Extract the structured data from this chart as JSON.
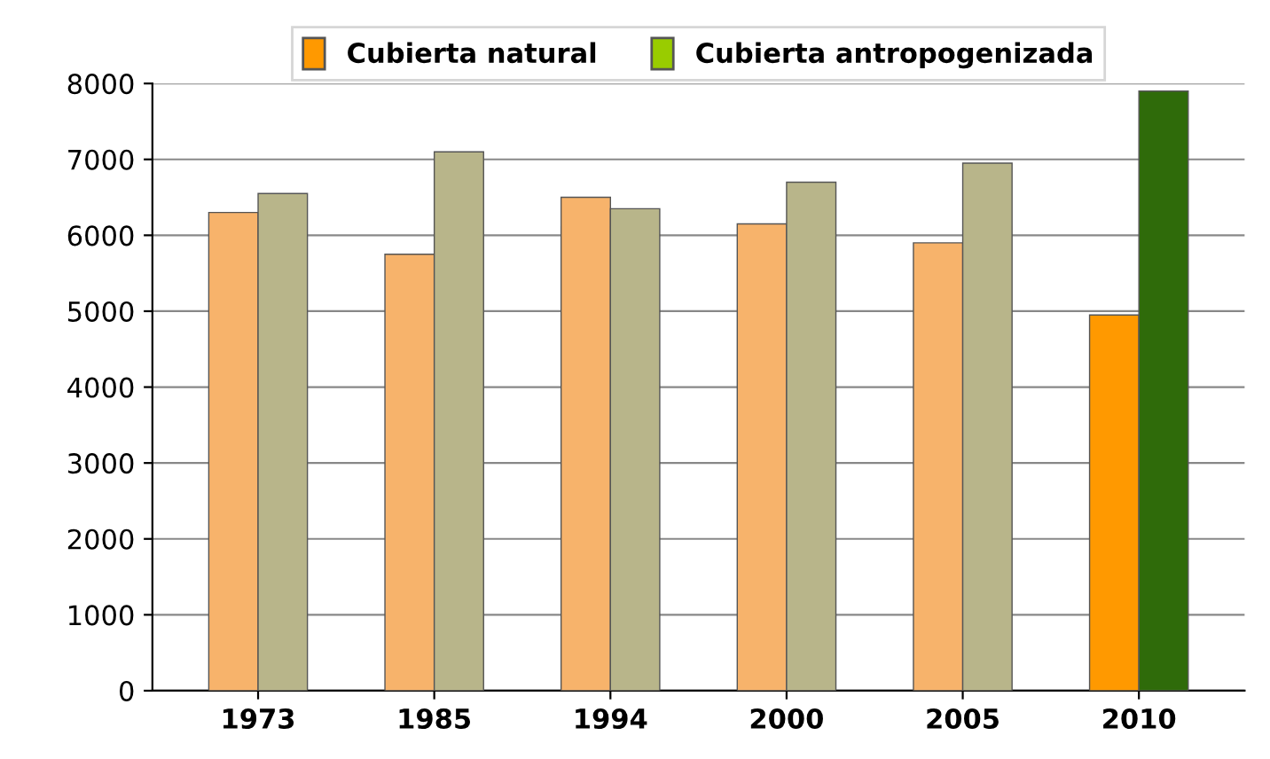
{
  "chart_data": {
    "type": "bar",
    "categories": [
      "1973",
      "1985",
      "1994",
      "2000",
      "2005",
      "2010"
    ],
    "series": [
      {
        "name": "Cubierta natural",
        "color": "#ff9900",
        "colors": [
          "#f7b36b",
          "#f7b36b",
          "#f7b36b",
          "#f7b36b",
          "#f7b36b",
          "#ff9900"
        ],
        "values": [
          6300,
          5750,
          6500,
          6150,
          5900,
          4950
        ]
      },
      {
        "name": "Cubierta antropogenizada",
        "color": "#99cc00",
        "colors": [
          "#b8b58a",
          "#b8b58a",
          "#b8b58a",
          "#b8b58a",
          "#b8b58a",
          "#2f6b0a"
        ],
        "values": [
          6550,
          7100,
          6350,
          6700,
          6950,
          7900
        ]
      }
    ],
    "ylim": [
      0,
      8000
    ],
    "yticks": [
      0,
      1000,
      2000,
      3000,
      4000,
      5000,
      6000,
      7000,
      8000
    ],
    "grid": "y",
    "legend": "top"
  }
}
